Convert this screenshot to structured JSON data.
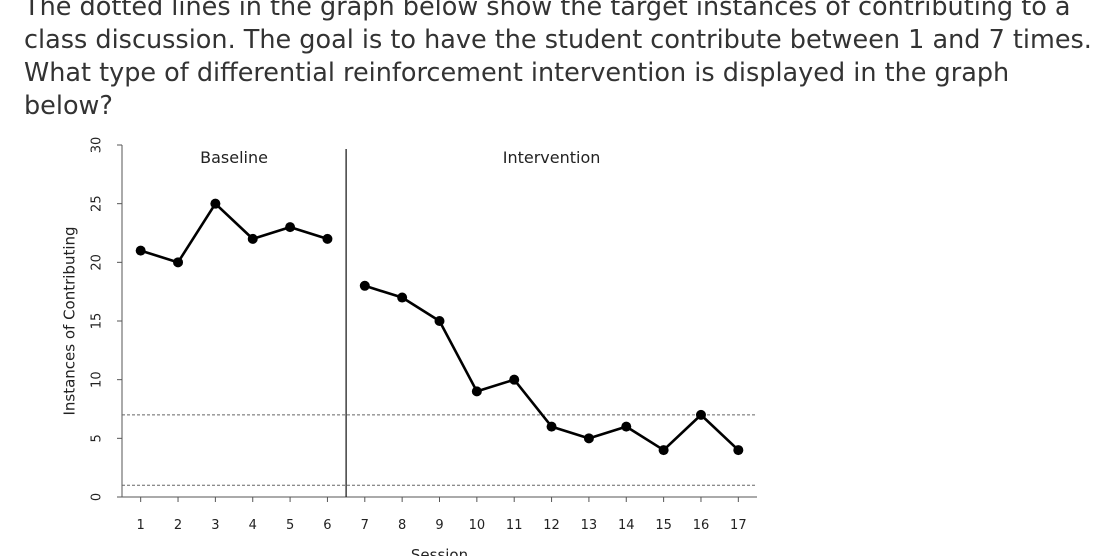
{
  "question": {
    "text": "The dotted lines in the graph below show the target instances of contributing to a class discussion. The goal is to have the student contribute between 1 and 7 times. What type of differential reinforcement intervention is displayed in the graph below?"
  },
  "chart_data": {
    "type": "line",
    "xlabel": "Session",
    "ylabel": "Instances of Contributing",
    "xlim": [
      0.5,
      17.5
    ],
    "ylim": [
      0,
      30
    ],
    "x_ticks": [
      1,
      2,
      3,
      4,
      5,
      6,
      7,
      8,
      9,
      10,
      11,
      12,
      13,
      14,
      15,
      16,
      17
    ],
    "y_ticks": [
      0,
      5,
      10,
      15,
      20,
      25,
      30
    ],
    "grid": false,
    "phase_change_after_session": 6,
    "criterion_lines": [
      1,
      7
    ],
    "phases": [
      {
        "label": "Baseline",
        "x": [
          1,
          2,
          3,
          4,
          5,
          6
        ],
        "y": [
          21,
          20,
          25,
          22,
          23,
          22
        ]
      },
      {
        "label": "Intervention",
        "x": [
          7,
          8,
          9,
          10,
          11,
          12,
          13,
          14,
          15,
          16,
          17
        ],
        "y": [
          18,
          17,
          15,
          9,
          10,
          6,
          5,
          6,
          4,
          7,
          4
        ]
      }
    ],
    "colors": {
      "data": "#000000",
      "axis": "#555555",
      "criterion": "#666666"
    }
  }
}
